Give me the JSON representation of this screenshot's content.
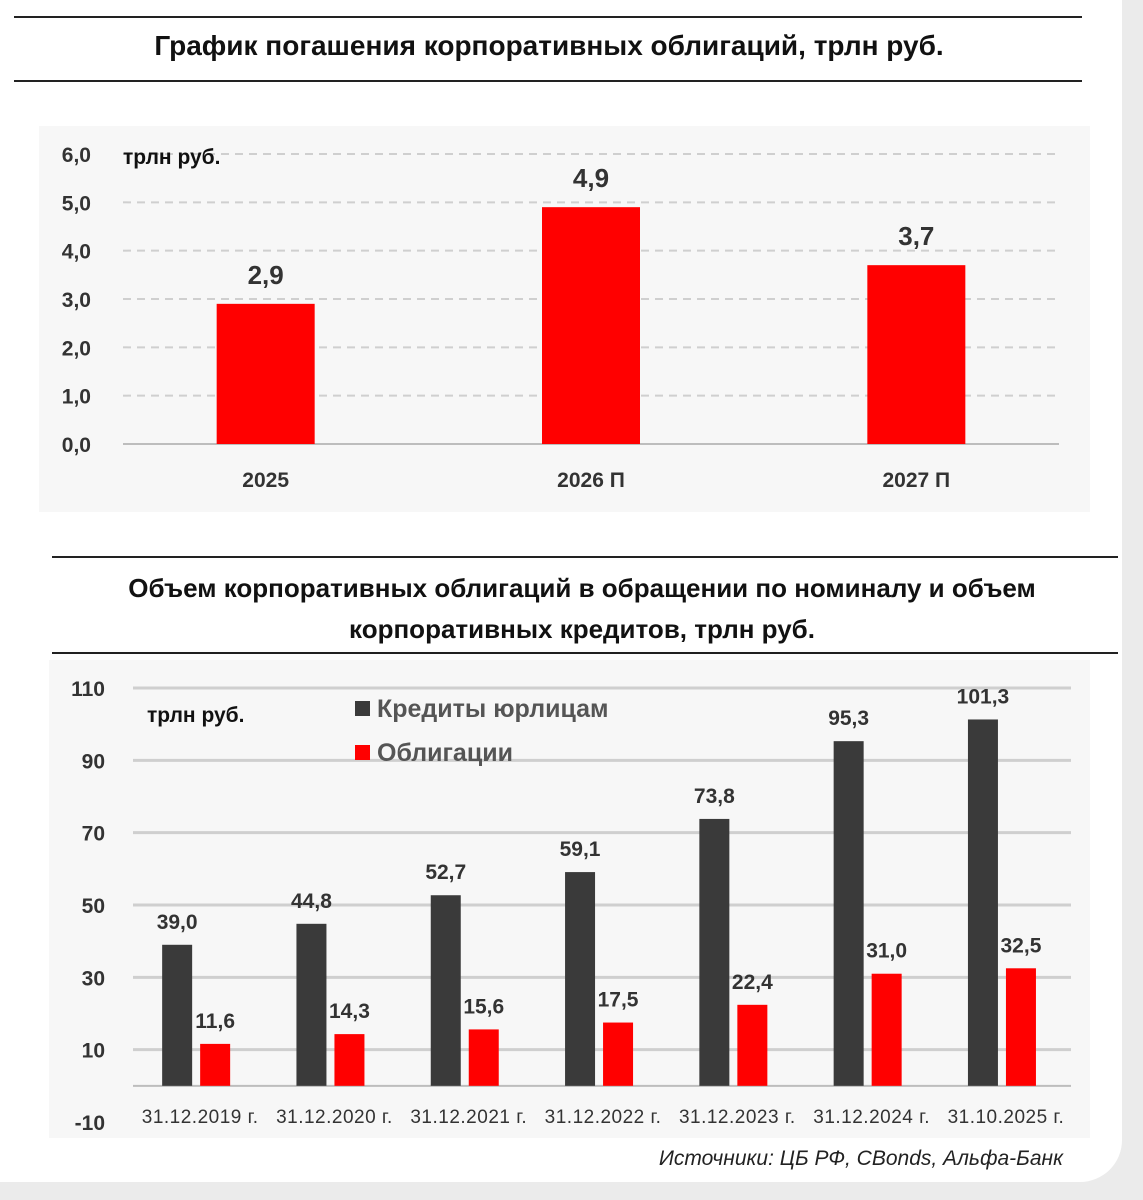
{
  "chart1_title": "График погашения корпоративных облигаций, трлн руб.",
  "chart2_title_line1": "Объем корпоративных облигаций в обращении по номиналу и объем",
  "chart2_title_line2": "корпоративных кредитов, трлн руб.",
  "source_text": "Источники: ЦБ РФ, CBonds, Альфа-Банк",
  "colors": {
    "bar_red": "#ff0000",
    "bar_dark": "#3a3a3a",
    "grid": "#cfcfcf"
  },
  "chart_data": [
    {
      "type": "bar",
      "title": "График погашения корпоративных облигаций, трлн руб.",
      "unit_label": "трлн руб.",
      "categories": [
        "2025",
        "2026 П",
        "2027 П"
      ],
      "values": [
        2.9,
        4.9,
        3.7
      ],
      "value_labels": [
        "2,9",
        "4,9",
        "3,7"
      ],
      "yticks": [
        "0,0",
        "1,0",
        "2,0",
        "3,0",
        "4,0",
        "5,0",
        "6,0"
      ],
      "ylim": [
        0,
        6
      ],
      "grid": true
    },
    {
      "type": "bar",
      "title": "Объем корпоративных облигаций в обращении по номиналу и объем корпоративных кредитов, трлн руб.",
      "unit_label": "трлн руб.",
      "categories": [
        "31.12.2019 г.",
        "31.12.2020 г.",
        "31.12.2021 г.",
        "31.12.2022 г.",
        "31.12.2023 г.",
        "31.12.2024 г.",
        "31.10.2025 г."
      ],
      "series": [
        {
          "name": "Кредиты юрлицам",
          "values": [
            39.0,
            44.8,
            52.7,
            59.1,
            73.8,
            95.3,
            101.3
          ],
          "labels": [
            "39,0",
            "44,8",
            "52,7",
            "59,1",
            "73,8",
            "95,3",
            "101,3"
          ]
        },
        {
          "name": "Облигации",
          "values": [
            11.6,
            14.3,
            15.6,
            17.5,
            22.4,
            31.0,
            32.5
          ],
          "labels": [
            "11,6",
            "14,3",
            "15,6",
            "17,5",
            "22,4",
            "31,0",
            "32,5"
          ]
        }
      ],
      "yticks": [
        "-10",
        "10",
        "30",
        "50",
        "70",
        "90",
        "110"
      ],
      "ylim": [
        -10,
        110
      ],
      "legend": "top-left",
      "grid": true
    }
  ]
}
